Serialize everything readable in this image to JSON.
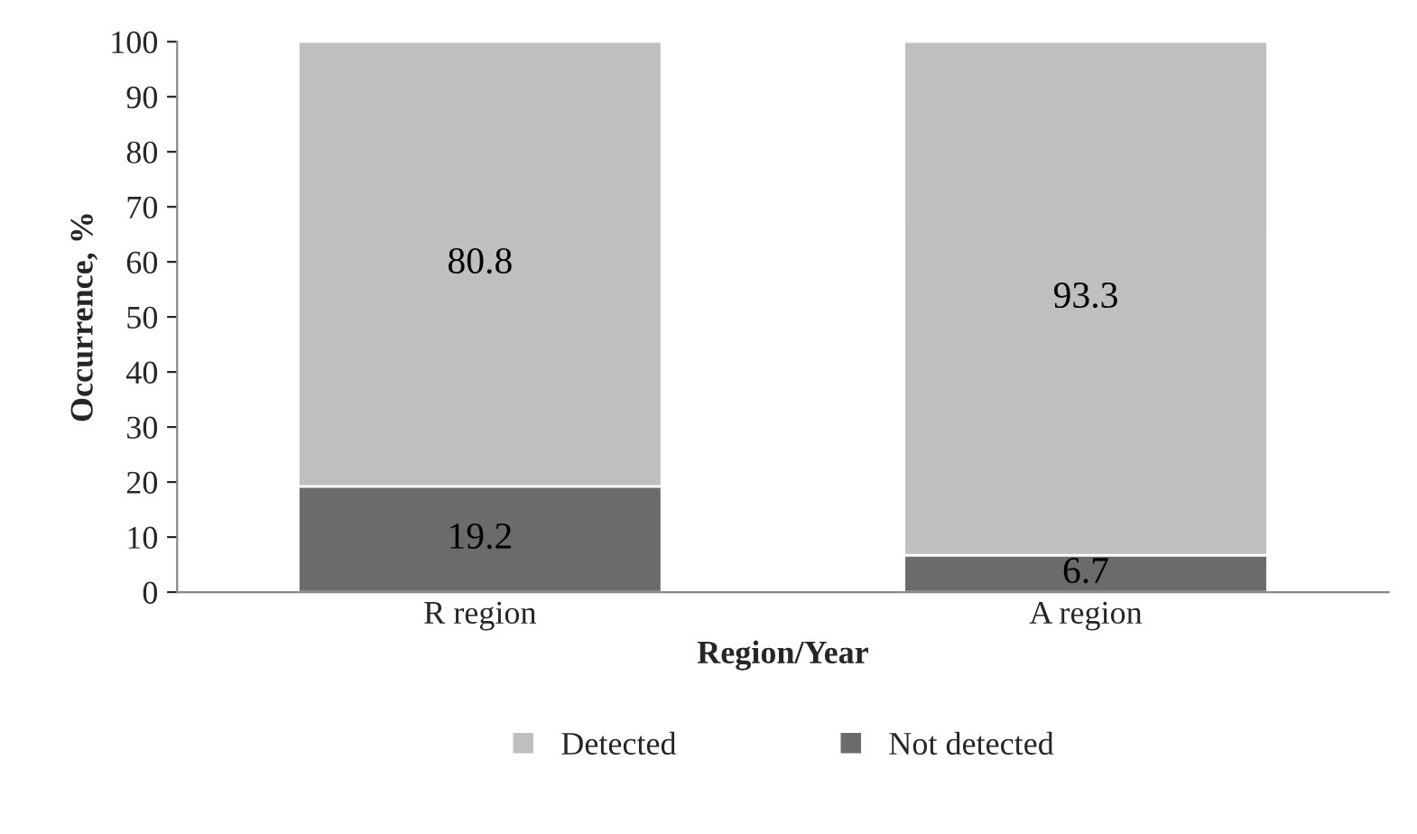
{
  "chart_data": {
    "type": "bar",
    "stacked": true,
    "xlabel": "Region/Year",
    "ylabel": "Occurrence, %",
    "categories": [
      "R region",
      "A region"
    ],
    "series": [
      {
        "name": "Not detected",
        "color": "#6b6b6b",
        "values": [
          19.2,
          6.7
        ]
      },
      {
        "name": "Detected",
        "color": "#bfbfbf",
        "values": [
          80.8,
          93.3
        ]
      }
    ],
    "ylim": [
      0,
      100
    ],
    "yticks": [
      0,
      10,
      20,
      30,
      40,
      50,
      60,
      70,
      80,
      90,
      100
    ],
    "data_labels": true,
    "legend": "bottom",
    "grid": false
  }
}
